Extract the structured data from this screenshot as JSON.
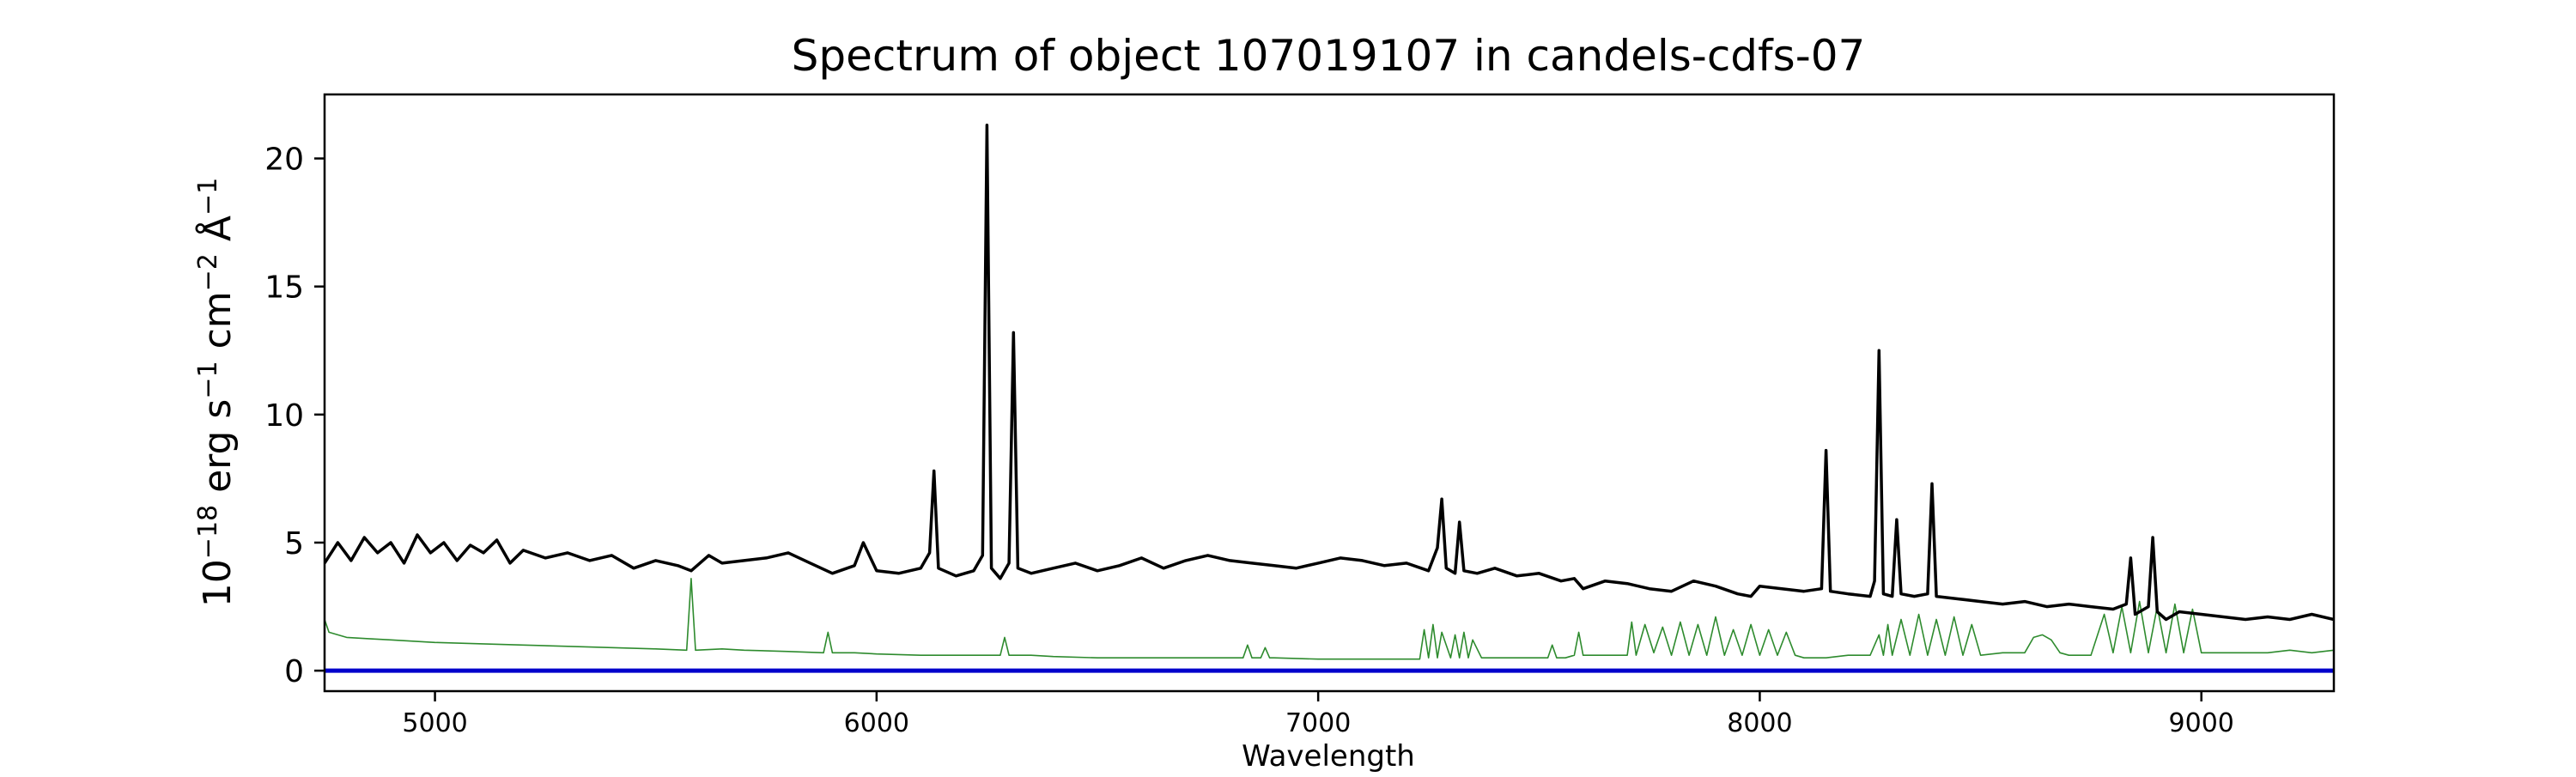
{
  "chart_data": {
    "type": "line",
    "title": "Spectrum of object 107019107 in candels-cdfs-07",
    "xlabel": "Wavelength",
    "ylabel": {
      "base": "10",
      "exp": "−18",
      "text1": " erg s",
      "exp2": "−1",
      "text2": " cm",
      "exp3": "−2",
      "text3": " Å",
      "exp4": "−1"
    },
    "xlim": [
      4750,
      9300
    ],
    "ylim": [
      -0.8,
      22.5
    ],
    "xticks": [
      5000,
      6000,
      7000,
      8000,
      9000
    ],
    "yticks": [
      0,
      5,
      10,
      15,
      20
    ],
    "grid": false,
    "legend": "none",
    "colors": {
      "flux": "#000000",
      "error": "#2e8b2e",
      "zero": "#0000cc"
    },
    "series": [
      {
        "key": "flux",
        "x": [
          4750,
          4780,
          4810,
          4840,
          4870,
          4900,
          4930,
          4960,
          4990,
          5020,
          5050,
          5080,
          5110,
          5140,
          5170,
          5200,
          5250,
          5300,
          5350,
          5400,
          5450,
          5500,
          5550,
          5580,
          5620,
          5650,
          5700,
          5750,
          5800,
          5850,
          5900,
          5950,
          5970,
          6000,
          6050,
          6100,
          6120,
          6130,
          6140,
          6180,
          6220,
          6240,
          6250,
          6260,
          6280,
          6300,
          6310,
          6320,
          6350,
          6400,
          6450,
          6500,
          6550,
          6600,
          6650,
          6700,
          6750,
          6800,
          6850,
          6900,
          6950,
          7000,
          7050,
          7100,
          7150,
          7200,
          7250,
          7270,
          7280,
          7290,
          7310,
          7320,
          7330,
          7360,
          7400,
          7450,
          7500,
          7550,
          7580,
          7600,
          7650,
          7700,
          7750,
          7800,
          7850,
          7900,
          7950,
          7980,
          8000,
          8050,
          8100,
          8140,
          8150,
          8160,
          8200,
          8250,
          8260,
          8270,
          8280,
          8300,
          8310,
          8320,
          8350,
          8380,
          8390,
          8400,
          8450,
          8500,
          8550,
          8600,
          8650,
          8700,
          8750,
          8800,
          8830,
          8840,
          8850,
          8880,
          8890,
          8900,
          8920,
          8950,
          9000,
          9050,
          9100,
          9150,
          9200,
          9250,
          9300
        ],
        "y": [
          4.2,
          5.0,
          4.3,
          5.2,
          4.6,
          5.0,
          4.2,
          5.3,
          4.6,
          5.0,
          4.3,
          4.9,
          4.6,
          5.1,
          4.2,
          4.7,
          4.4,
          4.6,
          4.3,
          4.5,
          4.0,
          4.3,
          4.1,
          3.9,
          4.5,
          4.2,
          4.3,
          4.4,
          4.6,
          4.2,
          3.8,
          4.1,
          5.0,
          3.9,
          3.8,
          4.0,
          4.6,
          7.8,
          4.0,
          3.7,
          3.9,
          4.5,
          21.3,
          4.0,
          3.6,
          4.2,
          13.2,
          4.0,
          3.8,
          4.0,
          4.2,
          3.9,
          4.1,
          4.4,
          4.0,
          4.3,
          4.5,
          4.3,
          4.2,
          4.1,
          4.0,
          4.2,
          4.4,
          4.3,
          4.1,
          4.2,
          3.9,
          4.8,
          6.7,
          4.0,
          3.8,
          5.8,
          3.9,
          3.8,
          4.0,
          3.7,
          3.8,
          3.5,
          3.6,
          3.2,
          3.5,
          3.4,
          3.2,
          3.1,
          3.5,
          3.3,
          3.0,
          2.9,
          3.3,
          3.2,
          3.1,
          3.2,
          8.6,
          3.1,
          3.0,
          2.9,
          3.5,
          12.5,
          3.0,
          2.9,
          5.9,
          3.0,
          2.9,
          3.0,
          7.3,
          2.9,
          2.8,
          2.7,
          2.6,
          2.7,
          2.5,
          2.6,
          2.5,
          2.4,
          2.6,
          4.4,
          2.2,
          2.5,
          5.2,
          2.3,
          2.0,
          2.3,
          2.2,
          2.1,
          2.0,
          2.1,
          2.0,
          2.2,
          2.0
        ]
      },
      {
        "key": "error",
        "x": [
          4750,
          4760,
          4800,
          4850,
          4900,
          4950,
          5000,
          5100,
          5200,
          5300,
          5400,
          5500,
          5570,
          5580,
          5590,
          5650,
          5700,
          5800,
          5880,
          5890,
          5900,
          5950,
          6000,
          6100,
          6200,
          6280,
          6290,
          6300,
          6350,
          6400,
          6500,
          6600,
          6700,
          6800,
          6830,
          6840,
          6850,
          6870,
          6880,
          6890,
          6900,
          7000,
          7100,
          7200,
          7230,
          7240,
          7250,
          7260,
          7270,
          7280,
          7300,
          7310,
          7320,
          7330,
          7340,
          7350,
          7370,
          7400,
          7450,
          7500,
          7520,
          7530,
          7540,
          7560,
          7580,
          7590,
          7600,
          7620,
          7640,
          7660,
          7680,
          7700,
          7710,
          7720,
          7740,
          7760,
          7780,
          7800,
          7820,
          7840,
          7860,
          7880,
          7900,
          7920,
          7940,
          7960,
          7980,
          8000,
          8020,
          8040,
          8060,
          8080,
          8100,
          8150,
          8200,
          8250,
          8270,
          8280,
          8290,
          8300,
          8320,
          8340,
          8360,
          8380,
          8400,
          8420,
          8440,
          8460,
          8480,
          8500,
          8550,
          8600,
          8620,
          8640,
          8660,
          8680,
          8700,
          8750,
          8780,
          8800,
          8820,
          8840,
          8860,
          8880,
          8900,
          8920,
          8940,
          8960,
          8980,
          9000,
          9050,
          9100,
          9150,
          9200,
          9250,
          9300
        ],
        "y": [
          2.0,
          1.5,
          1.3,
          1.25,
          1.2,
          1.15,
          1.1,
          1.05,
          1.0,
          0.95,
          0.9,
          0.85,
          0.8,
          3.6,
          0.8,
          0.85,
          0.8,
          0.75,
          0.7,
          1.5,
          0.7,
          0.7,
          0.65,
          0.6,
          0.6,
          0.6,
          1.3,
          0.6,
          0.6,
          0.55,
          0.5,
          0.5,
          0.5,
          0.5,
          0.5,
          1.0,
          0.5,
          0.5,
          0.9,
          0.5,
          0.5,
          0.45,
          0.45,
          0.45,
          0.45,
          1.6,
          0.5,
          1.8,
          0.5,
          1.5,
          0.5,
          1.4,
          0.5,
          1.5,
          0.5,
          1.2,
          0.5,
          0.5,
          0.5,
          0.5,
          0.5,
          1.0,
          0.5,
          0.5,
          0.6,
          1.5,
          0.6,
          0.6,
          0.6,
          0.6,
          0.6,
          0.6,
          1.9,
          0.6,
          1.8,
          0.7,
          1.7,
          0.6,
          1.9,
          0.6,
          1.8,
          0.6,
          2.1,
          0.6,
          1.6,
          0.6,
          1.8,
          0.6,
          1.6,
          0.6,
          1.5,
          0.6,
          0.5,
          0.5,
          0.6,
          0.6,
          1.4,
          0.6,
          1.8,
          0.6,
          2.0,
          0.6,
          2.2,
          0.6,
          2.0,
          0.6,
          2.1,
          0.6,
          1.8,
          0.6,
          0.7,
          0.7,
          1.3,
          1.4,
          1.2,
          0.7,
          0.6,
          0.6,
          2.2,
          0.7,
          2.5,
          0.7,
          2.7,
          0.7,
          2.5,
          0.7,
          2.6,
          0.7,
          2.4,
          0.7,
          0.7,
          0.7,
          0.7,
          0.8,
          0.7,
          0.8
        ]
      },
      {
        "key": "zero",
        "x": [
          4750,
          9300
        ],
        "y": [
          0,
          0
        ]
      }
    ]
  }
}
